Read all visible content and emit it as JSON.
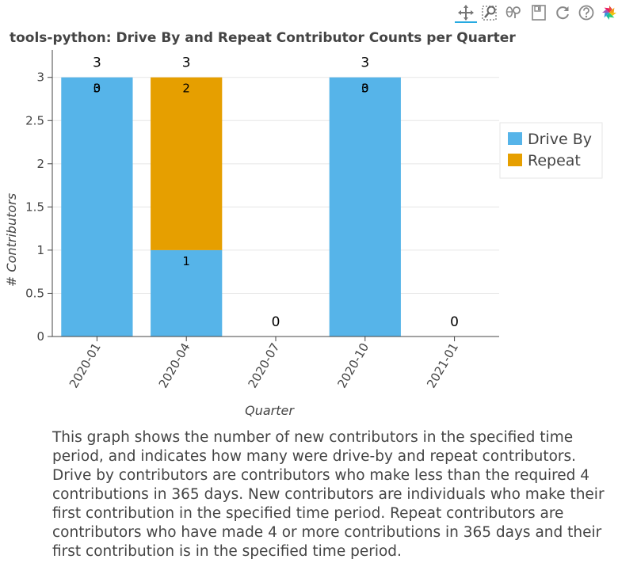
{
  "toolbar": {
    "tools": [
      {
        "name": "pan-icon",
        "active": true
      },
      {
        "name": "box-zoom-icon",
        "active": false
      },
      {
        "name": "wheel-zoom-icon",
        "active": false
      },
      {
        "name": "save-icon",
        "active": false
      },
      {
        "name": "reset-icon",
        "active": false
      },
      {
        "name": "help-icon",
        "active": false
      },
      {
        "name": "bokeh-logo-icon",
        "active": false
      }
    ],
    "accent_color": "#26aae1"
  },
  "description": "This graph shows the number of new contributors in the specified time period, and indicates how many were drive-by and repeat contributors. Drive by contributors are contributors who make less than the required 4 contributions in 365 days. New contributors are individuals who make their first contribution in the specified time period. Repeat contributors are contributors who have made 4 or more contributions in 365 days and their first contribution is in the specified time period.",
  "chart_data": {
    "type": "bar",
    "stacked": true,
    "title": "tools-python: Drive By and Repeat Contributor Counts per Quarter",
    "xlabel": "Quarter",
    "ylabel": "# Contributors",
    "categories": [
      "2020-01",
      "2020-04",
      "2020-07",
      "2020-10",
      "2021-01"
    ],
    "series": [
      {
        "name": "Drive By",
        "values": [
          3,
          1,
          0,
          3,
          0
        ],
        "color": "#56b4e9"
      },
      {
        "name": "Repeat",
        "values": [
          0,
          2,
          0,
          0,
          0
        ],
        "color": "#e69f00"
      }
    ],
    "totals": [
      3,
      3,
      0,
      3,
      0
    ],
    "totals_labels": [
      "3",
      "3",
      "0",
      "3",
      "0"
    ],
    "ylim": [
      0,
      3.3
    ],
    "yticks": [
      0,
      0.5,
      1,
      1.5,
      2,
      2.5,
      3
    ],
    "ytick_labels": [
      "0",
      "0.5",
      "1",
      "1.5",
      "2",
      "2.5",
      "3"
    ],
    "grid": true,
    "legend_position": "right"
  }
}
